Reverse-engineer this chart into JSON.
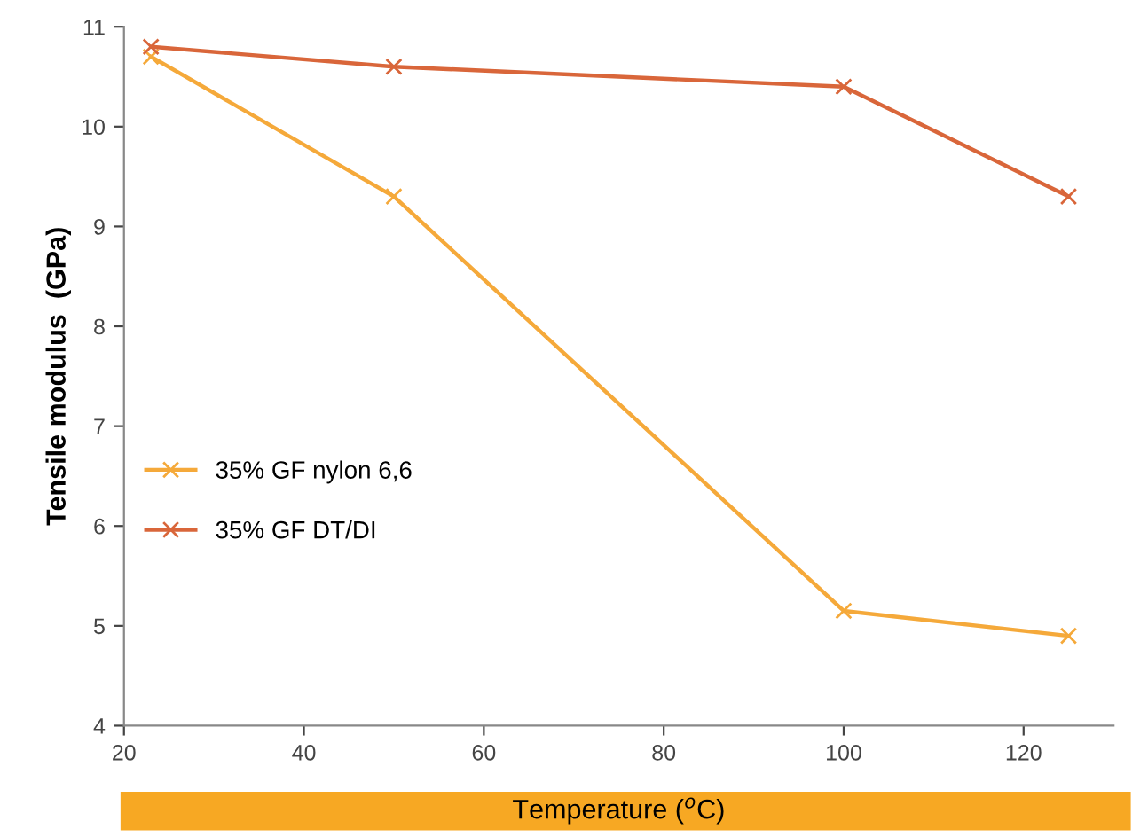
{
  "chart_data": {
    "type": "line",
    "xlabel": "Temperature ($^{o}$C)",
    "ylabel": "Tensile modulus  (GPa)",
    "x": [
      23,
      50,
      100,
      125
    ],
    "series": [
      {
        "name": "35% GF nylon 6,6",
        "color": "#f5a93a",
        "values": [
          10.7,
          9.3,
          5.15,
          4.9
        ]
      },
      {
        "name": "35% GF DT/DI",
        "color": "#d9663a",
        "values": [
          10.8,
          10.6,
          10.4,
          9.3
        ]
      }
    ],
    "xlim": [
      20,
      130
    ],
    "xticks": [
      20,
      40,
      60,
      80,
      100,
      120
    ],
    "ylim": [
      4,
      11
    ],
    "yticks": [
      4,
      5,
      6,
      7,
      8,
      9,
      10,
      11
    ],
    "grid": false,
    "legend": "left",
    "marker": "cross",
    "line_style": "solid"
  }
}
